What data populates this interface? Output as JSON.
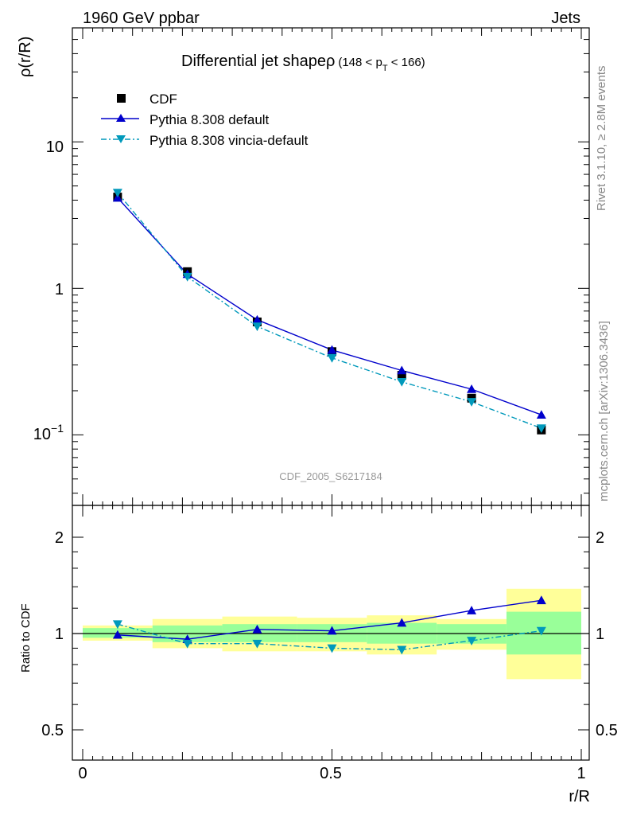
{
  "header": {
    "left": "1960 GeV ppbar",
    "right": "Jets"
  },
  "side_labels": {
    "rivet": "Rivet 3.1.10, ≥ 2.8M events",
    "mcplots": "mcplots.cern.ch [arXiv:1306.3436]"
  },
  "watermark": "CDF_2005_S6217184",
  "chart_data": [
    {
      "type": "scatter",
      "title": "Differential jet shapeρ",
      "title_sub": "(148 < p",
      "title_sub_sub": "T",
      "title_sub_end": " < 166)",
      "ylabel": "ρ(r/R)",
      "xlabel": "r/R",
      "yscale": "log",
      "xlim": [
        -0.02,
        1.02
      ],
      "ylim": [
        0.033,
        60
      ],
      "ytick_labels": {
        "ten": "10",
        "one": "1",
        "tenth_base": "10",
        "tenth_exp": "−1"
      },
      "legend_position": "top-left",
      "x": [
        0.07,
        0.21,
        0.35,
        0.5,
        0.64,
        0.78,
        0.92
      ],
      "series": [
        {
          "name": "CDF",
          "values": [
            4.2,
            1.3,
            0.59,
            0.37,
            0.255,
            0.178,
            0.108
          ],
          "color": "#000000",
          "marker": "square"
        },
        {
          "name": "Pythia 8.308 default",
          "values": [
            4.15,
            1.25,
            0.61,
            0.38,
            0.275,
            0.205,
            0.137
          ],
          "color": "#0000cc",
          "marker": "triangle-up"
        },
        {
          "name": "Pythia 8.308 vincia-default",
          "values": [
            4.5,
            1.2,
            0.55,
            0.335,
            0.23,
            0.168,
            0.111
          ],
          "color": "#0099bb",
          "marker": "triangle-down",
          "dash": "dash-dot"
        }
      ]
    },
    {
      "type": "scatter",
      "ylabel": "Ratio to CDF",
      "xlabel": "r/R",
      "ylim": [
        0.4,
        2.4
      ],
      "yscale": "log",
      "ytick_labels": [
        "0.5",
        "1",
        "2"
      ],
      "xtick_labels": [
        "0",
        "0.5",
        "1"
      ],
      "x": [
        0.07,
        0.21,
        0.35,
        0.5,
        0.64,
        0.78,
        0.92
      ],
      "bins": [
        [
          0.0,
          0.14
        ],
        [
          0.14,
          0.28
        ],
        [
          0.28,
          0.43
        ],
        [
          0.43,
          0.57
        ],
        [
          0.57,
          0.71
        ],
        [
          0.71,
          0.85
        ],
        [
          0.85,
          1.0
        ]
      ],
      "band_yellow": [
        [
          0.95,
          1.06
        ],
        [
          0.9,
          1.11
        ],
        [
          0.88,
          1.13
        ],
        [
          0.88,
          1.12
        ],
        [
          0.86,
          1.14
        ],
        [
          0.89,
          1.11
        ],
        [
          0.72,
          1.38
        ]
      ],
      "band_green": [
        [
          0.97,
          1.04
        ],
        [
          0.94,
          1.06
        ],
        [
          0.94,
          1.07
        ],
        [
          0.94,
          1.07
        ],
        [
          0.93,
          1.08
        ],
        [
          0.93,
          1.07
        ],
        [
          0.86,
          1.17
        ]
      ],
      "series": [
        {
          "name": "Pythia 8.308 default",
          "values": [
            0.99,
            0.96,
            1.03,
            1.02,
            1.08,
            1.18,
            1.27
          ],
          "color": "#0000cc"
        },
        {
          "name": "Pythia 8.308 vincia-default",
          "values": [
            1.07,
            0.93,
            0.93,
            0.9,
            0.89,
            0.95,
            1.02
          ],
          "color": "#0099bb"
        }
      ]
    }
  ]
}
